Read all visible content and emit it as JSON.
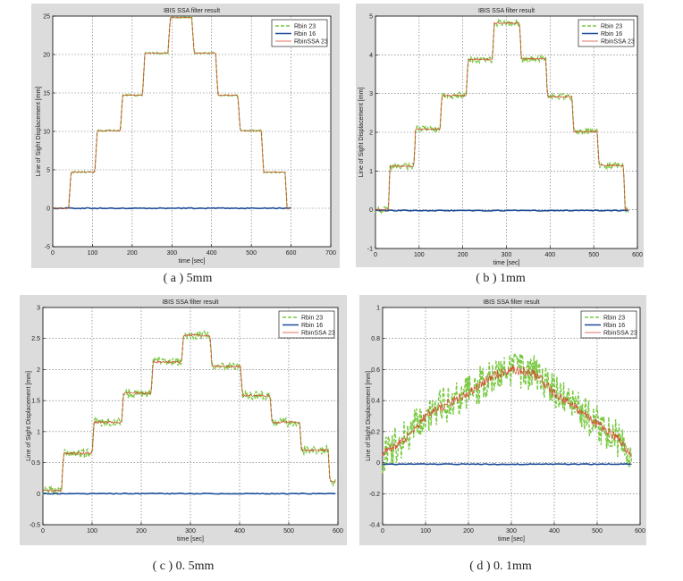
{
  "colors": {
    "figure_bg": "#dcdcdc",
    "axes_bg": "#ffffff",
    "rbin23": "#7ac943",
    "rbin16": "#1f4e9a",
    "rbinssa23": "#d9452b",
    "grid": "#666666"
  },
  "chart_data": [
    {
      "type": "line",
      "panel": "a",
      "caption": "( a ) 5mm",
      "title": "IBIS SSA filter result",
      "xlabel": "time [sec]",
      "ylabel": "Line of Sight Displacement [mm]",
      "xlim": [
        0,
        700
      ],
      "ylim": [
        -5,
        25
      ],
      "xticks": [
        0,
        100,
        200,
        300,
        400,
        500,
        600,
        700
      ],
      "yticks": [
        -5,
        0,
        5,
        10,
        15,
        20,
        25
      ],
      "grid": true,
      "legend_position": "top-right",
      "noise": 0.1,
      "series": [
        {
          "name": "Rbin 23",
          "style": "dashed"
        },
        {
          "name": "Rbin 16",
          "style": "solid-thick"
        },
        {
          "name": "RbinSSA 23",
          "style": "solid-thin"
        }
      ],
      "rbin23_steps": [
        {
          "x0": 0,
          "x1": 40,
          "y": 0
        },
        {
          "x0": 46,
          "x1": 106,
          "y": 4.7
        },
        {
          "x0": 112,
          "x1": 170,
          "y": 10.1
        },
        {
          "x0": 176,
          "x1": 226,
          "y": 14.7
        },
        {
          "x0": 232,
          "x1": 290,
          "y": 20.2
        },
        {
          "x0": 296,
          "x1": 350,
          "y": 24.8
        },
        {
          "x0": 356,
          "x1": 410,
          "y": 20.2
        },
        {
          "x0": 416,
          "x1": 466,
          "y": 14.7
        },
        {
          "x0": 472,
          "x1": 525,
          "y": 10.1
        },
        {
          "x0": 531,
          "x1": 585,
          "y": 4.7
        },
        {
          "x0": 590,
          "x1": 600,
          "y": 0
        }
      ],
      "rbin16_level": 0
    },
    {
      "type": "line",
      "panel": "b",
      "caption": "( b ) 1mm",
      "title": "IBIS SSA filter result",
      "xlabel": "time [sec]",
      "ylabel": "Line of Sight Displacement [mm]",
      "xlim": [
        0,
        600
      ],
      "ylim": [
        -1,
        5
      ],
      "xticks": [
        0,
        100,
        200,
        300,
        400,
        500,
        600
      ],
      "yticks": [
        -1,
        0,
        1,
        2,
        3,
        4,
        5
      ],
      "grid": true,
      "legend_position": "top-right",
      "noise": 0.08,
      "series": [
        {
          "name": "Rbin 23",
          "style": "dashed"
        },
        {
          "name": "Rbin 16",
          "style": "solid-thick"
        },
        {
          "name": "RbinSSA 23",
          "style": "solid-thin"
        }
      ],
      "rbin23_steps": [
        {
          "x0": 0,
          "x1": 30,
          "y": 0
        },
        {
          "x0": 33,
          "x1": 88,
          "y": 1.12
        },
        {
          "x0": 92,
          "x1": 148,
          "y": 2.08
        },
        {
          "x0": 152,
          "x1": 208,
          "y": 2.95
        },
        {
          "x0": 212,
          "x1": 268,
          "y": 3.88
        },
        {
          "x0": 272,
          "x1": 330,
          "y": 4.82
        },
        {
          "x0": 334,
          "x1": 390,
          "y": 3.9
        },
        {
          "x0": 394,
          "x1": 450,
          "y": 2.92
        },
        {
          "x0": 454,
          "x1": 508,
          "y": 2.02
        },
        {
          "x0": 512,
          "x1": 568,
          "y": 1.15
        },
        {
          "x0": 572,
          "x1": 580,
          "y": 0
        }
      ],
      "rbin16_level": -0.02
    },
    {
      "type": "line",
      "panel": "c",
      "caption": "( c ) 0. 5mm",
      "title": "IBIS SSA filter result",
      "xlabel": "time [sec]",
      "ylabel": "Line of Sight Displacement [mm]",
      "xlim": [
        0,
        600
      ],
      "ylim": [
        -0.5,
        3
      ],
      "xticks": [
        0,
        100,
        200,
        300,
        400,
        500,
        600
      ],
      "yticks": [
        -0.5,
        0,
        0.5,
        1,
        1.5,
        2,
        2.5,
        3
      ],
      "grid": true,
      "legend_position": "top-right",
      "noise": 0.07,
      "series": [
        {
          "name": "Rbin 23",
          "style": "dashed"
        },
        {
          "name": "Rbin 16",
          "style": "solid-thick"
        },
        {
          "name": "RbinSSA 23",
          "style": "solid-thin"
        }
      ],
      "rbin23_steps": [
        {
          "x0": 0,
          "x1": 38,
          "y": 0.05
        },
        {
          "x0": 42,
          "x1": 100,
          "y": 0.65
        },
        {
          "x0": 104,
          "x1": 160,
          "y": 1.15
        },
        {
          "x0": 164,
          "x1": 220,
          "y": 1.62
        },
        {
          "x0": 224,
          "x1": 282,
          "y": 2.12
        },
        {
          "x0": 286,
          "x1": 340,
          "y": 2.55
        },
        {
          "x0": 344,
          "x1": 402,
          "y": 2.05
        },
        {
          "x0": 406,
          "x1": 462,
          "y": 1.58
        },
        {
          "x0": 466,
          "x1": 522,
          "y": 1.15
        },
        {
          "x0": 526,
          "x1": 580,
          "y": 0.7
        },
        {
          "x0": 584,
          "x1": 595,
          "y": 0.2
        }
      ],
      "rbin16_level": 0.0
    },
    {
      "type": "line",
      "panel": "d",
      "caption": "( d ) 0. 1mm",
      "title": "IBIS SSA filter result",
      "xlabel": "time [sec]",
      "ylabel": "Line of Sight Displacement [mm]",
      "xlim": [
        0,
        600
      ],
      "ylim": [
        -0.4,
        1
      ],
      "xticks": [
        0,
        100,
        200,
        300,
        400,
        500,
        600
      ],
      "yticks": [
        -0.4,
        -0.2,
        0,
        0.2,
        0.4,
        0.6,
        0.8,
        1
      ],
      "grid": true,
      "legend_position": "top-right",
      "noise": 0.12,
      "series": [
        {
          "name": "Rbin 23",
          "style": "dashed"
        },
        {
          "name": "Rbin 16",
          "style": "solid-thick"
        },
        {
          "name": "RbinSSA 23",
          "style": "solid-thin"
        }
      ],
      "rbin23_trend": [
        {
          "x": 0,
          "y": 0.05
        },
        {
          "x": 50,
          "y": 0.15
        },
        {
          "x": 100,
          "y": 0.3
        },
        {
          "x": 150,
          "y": 0.38
        },
        {
          "x": 200,
          "y": 0.45
        },
        {
          "x": 250,
          "y": 0.55
        },
        {
          "x": 300,
          "y": 0.6
        },
        {
          "x": 350,
          "y": 0.58
        },
        {
          "x": 400,
          "y": 0.45
        },
        {
          "x": 450,
          "y": 0.35
        },
        {
          "x": 500,
          "y": 0.25
        },
        {
          "x": 550,
          "y": 0.15
        },
        {
          "x": 580,
          "y": 0.05
        }
      ],
      "rbin16_level": -0.01
    }
  ]
}
